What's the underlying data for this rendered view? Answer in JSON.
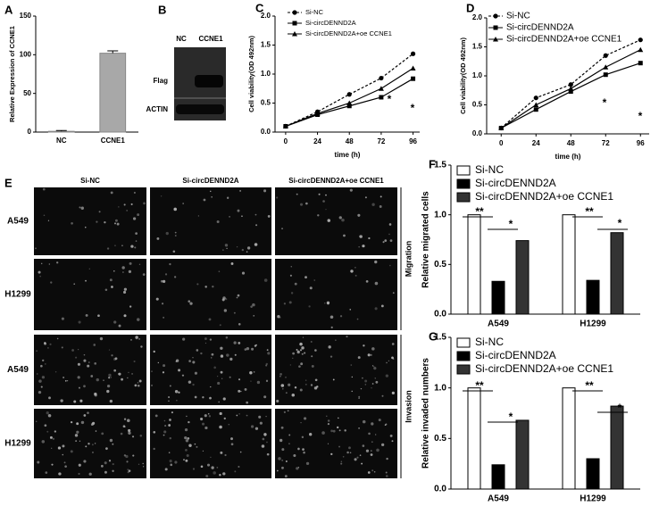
{
  "chart_data": [
    {
      "type": "bar",
      "panel": "A",
      "ylabel": "Relative Expression of CCNE1",
      "categories": [
        "NC",
        "CCNE1"
      ],
      "values": [
        1,
        102
      ],
      "errors": [
        1,
        3
      ],
      "colors": [
        "#ffffff",
        "#a8a8a8"
      ],
      "ylim": [
        0,
        150
      ],
      "yticks": [
        0,
        50,
        100,
        150
      ]
    },
    {
      "type": "line",
      "panel": "C",
      "xlabel": "time (h)",
      "ylabel": "Cell viability(OD 492nm)",
      "x": [
        0,
        24,
        48,
        72,
        96
      ],
      "xlim": [
        -8,
        101
      ],
      "xticks": [
        0,
        24,
        48,
        72,
        96
      ],
      "ylim": [
        0,
        2.0
      ],
      "yticks": [
        {
          "value": 0,
          "label": "0.0"
        },
        {
          "value": 0.5,
          "label": "0.5"
        },
        {
          "value": 1.0,
          "label": "1.0"
        },
        {
          "value": 1.5,
          "label": "1.5"
        },
        {
          "value": 2.0,
          "label": "2.0"
        }
      ],
      "series": [
        {
          "name": "Si-NC",
          "color": "#000000",
          "marker": "circle",
          "linestyle": "dashed",
          "values": [
            0.1,
            0.35,
            0.65,
            0.93,
            1.35
          ]
        },
        {
          "name": "Si-circDENND2A",
          "color": "#000000",
          "marker": "square",
          "linestyle": "solid",
          "values": [
            0.1,
            0.3,
            0.45,
            0.6,
            0.92
          ]
        },
        {
          "name": "Si-circDENND2A+oe CCNE1",
          "color": "#000000",
          "marker": "triangle",
          "linestyle": "solid",
          "values": [
            0.1,
            0.32,
            0.5,
            0.75,
            1.1
          ]
        }
      ],
      "annotations": [
        "*",
        "*"
      ]
    },
    {
      "type": "line",
      "panel": "D",
      "xlabel": "time (h)",
      "ylabel": "Cell viability(OD 492nm)",
      "x": [
        0,
        24,
        48,
        72,
        96
      ],
      "xlim": [
        -10,
        102
      ],
      "xticks": [
        0,
        24,
        48,
        72,
        96
      ],
      "ylim": [
        0,
        2.0
      ],
      "yticks": [
        {
          "value": 0,
          "label": "0.0"
        },
        {
          "value": 0.5,
          "label": "0.5"
        },
        {
          "value": 1.0,
          "label": "1.0"
        },
        {
          "value": 1.5,
          "label": "1.5"
        },
        {
          "value": 2.0,
          "label": "2.0"
        }
      ],
      "series": [
        {
          "name": "Si-NC",
          "color": "#000000",
          "marker": "circle",
          "linestyle": "dashed",
          "values": [
            0.1,
            0.62,
            0.85,
            1.35,
            1.62
          ]
        },
        {
          "name": "Si-circDENND2A",
          "color": "#000000",
          "marker": "square",
          "linestyle": "solid",
          "values": [
            0.1,
            0.42,
            0.73,
            1.02,
            1.22
          ]
        },
        {
          "name": "Si-circDENND2A+oe CCNE1",
          "color": "#000000",
          "marker": "triangle",
          "linestyle": "solid",
          "values": [
            0.1,
            0.5,
            0.78,
            1.15,
            1.45
          ]
        }
      ],
      "annotations": [
        "*",
        "*"
      ]
    },
    {
      "type": "groupbar",
      "panel": "F",
      "ylabel": "Relative migrated cells",
      "categories": [
        "A549",
        "H1299"
      ],
      "ylim": [
        0,
        1.5
      ],
      "yticks": [
        {
          "value": 0,
          "label": "0.0"
        },
        {
          "value": 0.5,
          "label": "0.5"
        },
        {
          "value": 1.0,
          "label": "1.0"
        },
        {
          "value": 1.5,
          "label": "1.5"
        }
      ],
      "series": [
        {
          "name": "Si-NC",
          "color": "#ffffff",
          "values": [
            1.0,
            1.0
          ]
        },
        {
          "name": "Si-circDENND2A",
          "color": "#000000",
          "values": [
            0.33,
            0.34
          ]
        },
        {
          "name": "Si-circDENND2A+oe CCNE1",
          "color": "#333333",
          "values": [
            0.74,
            0.82
          ]
        }
      ],
      "annotations": [
        "**",
        "*",
        "**",
        "*"
      ]
    },
    {
      "type": "groupbar",
      "panel": "G",
      "ylabel": "Relative invaded numbers",
      "categories": [
        "A549",
        "H1299"
      ],
      "ylim": [
        0,
        1.5
      ],
      "yticks": [
        {
          "value": 0,
          "label": "0.0"
        },
        {
          "value": 0.5,
          "label": "0.5"
        },
        {
          "value": 1.0,
          "label": "1.0"
        },
        {
          "value": 1.5,
          "label": "1.5"
        }
      ],
      "series": [
        {
          "name": "Si-NC",
          "color": "#ffffff",
          "values": [
            1.0,
            1.0
          ]
        },
        {
          "name": "Si-circDENND2A",
          "color": "#000000",
          "values": [
            0.24,
            0.3
          ]
        },
        {
          "name": "Si-circDENND2A+oe CCNE1",
          "color": "#333333",
          "values": [
            0.68,
            0.82
          ]
        }
      ],
      "annotations": [
        "**",
        "*",
        "**",
        "*"
      ]
    }
  ],
  "blot": {
    "panel": "B",
    "columns": [
      "NC",
      "CCNE1"
    ],
    "rows": [
      "Flag",
      "ACTIN"
    ]
  },
  "micrographs": {
    "panel": "E",
    "columns": [
      "Si-NC",
      "Si-circDENND2A",
      "Si-circDENND2A+oe CCNE1"
    ],
    "rows": [
      "A549",
      "H1299",
      "A549",
      "H1299"
    ],
    "groups": [
      "Migration",
      "Invasion"
    ]
  }
}
